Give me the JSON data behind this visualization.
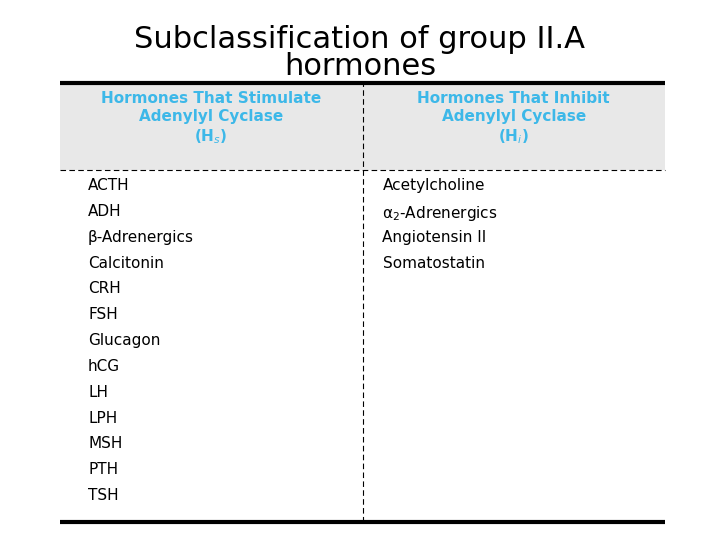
{
  "title_line1": "Subclassification of group II.A",
  "title_line2": "hormones",
  "title_fontsize": 22,
  "header_color": "#3db8e8",
  "header_bg": "#e8e8e8",
  "col1_header_line1": "Hormones That Stimulate",
  "col1_header_line2": "Adenylyl Cyclase",
  "col1_header_line3": "(H$_s$)",
  "col2_header_line1": "Hormones That Inhibit",
  "col2_header_line2": "Adenylyl Cyclase",
  "col2_header_line3": "(H$_i$)",
  "col1_items": [
    "ACTH",
    "ADH",
    "β-Adrenergics",
    "Calcitonin",
    "CRH",
    "FSH",
    "Glucagon",
    "hCG",
    "LH",
    "LPH",
    "MSH",
    "PTH",
    "TSH"
  ],
  "col2_items": [
    {
      "text": "Acetylcholine",
      "has_subscript": false
    },
    {
      "text": "α$_{2}$-Adrenergics",
      "has_subscript": true
    },
    {
      "text": "Angiotensin II",
      "has_subscript": false
    },
    {
      "text": "Somatostatin",
      "has_subscript": false
    }
  ],
  "body_fontsize": 11,
  "header_fontsize": 11,
  "background": "#ffffff"
}
